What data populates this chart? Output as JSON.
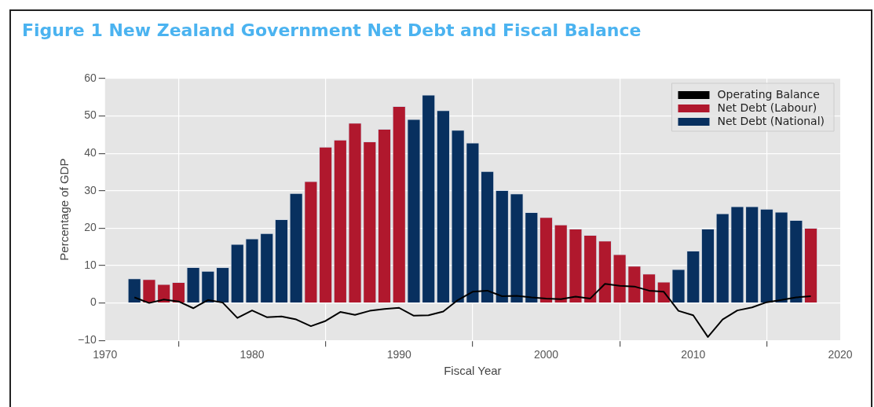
{
  "chart_data": {
    "type": "bar",
    "title": "Figure 1 New Zealand Government Net Debt and Fiscal Balance",
    "xlabel": "Fiscal Year",
    "ylabel": "Percentage of GDP",
    "x": [
      1972,
      1973,
      1974,
      1975,
      1976,
      1977,
      1978,
      1979,
      1980,
      1981,
      1982,
      1983,
      1984,
      1985,
      1986,
      1987,
      1988,
      1989,
      1990,
      1991,
      1992,
      1993,
      1994,
      1995,
      1996,
      1997,
      1998,
      1999,
      2000,
      2001,
      2002,
      2003,
      2004,
      2005,
      2006,
      2007,
      2008,
      2009,
      2010,
      2011,
      2012,
      2013,
      2014,
      2015,
      2016,
      2017,
      2018
    ],
    "series": [
      {
        "name": "Operating Balance",
        "type": "line",
        "color": "#000000",
        "values": [
          1.5,
          0,
          0.9,
          0.4,
          -1.4,
          0.8,
          0.1,
          -4.0,
          -2.0,
          -3.8,
          -3.6,
          -4.4,
          -6.2,
          -4.8,
          -2.4,
          -3.2,
          -2.1,
          -1.6,
          -1.3,
          -3.4,
          -3.3,
          -2.3,
          0.8,
          3.0,
          3.3,
          1.8,
          1.9,
          1.5,
          1.2,
          1.0,
          1.7,
          1.2,
          5.1,
          4.6,
          4.4,
          3.3,
          3.0,
          -2.1,
          -3.3,
          -9.1,
          -4.4,
          -2.0,
          -1.2,
          0.2,
          0.8,
          1.5,
          1.8
        ]
      },
      {
        "name": "Net Debt (Labour)",
        "color": "#b0182d",
        "values": [
          null,
          6.3,
          5.0,
          5.5,
          null,
          null,
          null,
          null,
          null,
          null,
          null,
          null,
          32.5,
          41.7,
          43.6,
          48.1,
          43.1,
          46.5,
          52.6,
          null,
          null,
          null,
          null,
          null,
          null,
          null,
          null,
          null,
          22.9,
          20.9,
          19.8,
          18.1,
          16.6,
          13.0,
          9.9,
          7.8,
          5.6,
          null,
          null,
          null,
          null,
          null,
          null,
          null,
          null,
          null,
          20.0
        ]
      },
      {
        "name": "Net Debt (National)",
        "color": "#08305f",
        "values": [
          6.5,
          null,
          null,
          null,
          9.5,
          8.5,
          9.5,
          15.7,
          17.2,
          18.6,
          22.3,
          29.3,
          null,
          null,
          null,
          null,
          null,
          null,
          null,
          49.1,
          55.6,
          51.5,
          46.2,
          42.8,
          35.2,
          30.1,
          29.2,
          24.2,
          null,
          null,
          null,
          null,
          null,
          null,
          null,
          null,
          null,
          9.0,
          13.9,
          19.8,
          23.9,
          25.8,
          25.8,
          25.1,
          24.3,
          22.1,
          null
        ]
      }
    ],
    "xlim": [
      1970,
      2020
    ],
    "xticks": [
      1970,
      1980,
      1990,
      2000,
      2010,
      2020
    ],
    "ylim": [
      -10,
      60
    ],
    "yticks": [
      -10,
      0,
      10,
      20,
      30,
      40,
      50,
      60
    ],
    "grid": true,
    "legend": "top right",
    "marker": "none",
    "line_style": "solid"
  }
}
